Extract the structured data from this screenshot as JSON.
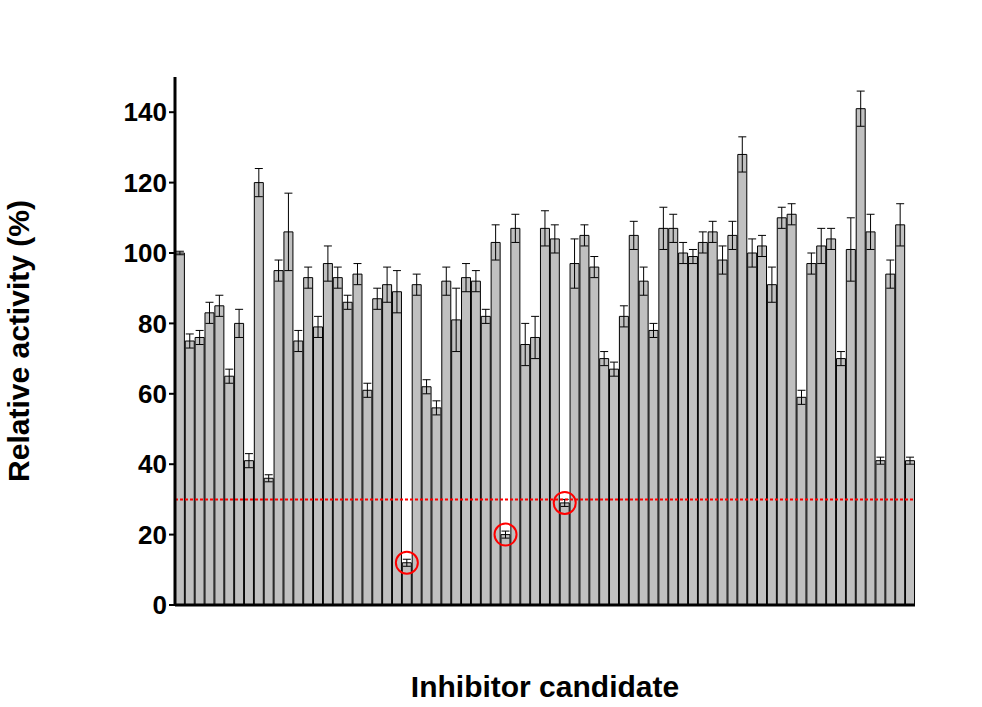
{
  "chart_data": {
    "type": "bar",
    "x_label": "Inhibitor candidate",
    "y_label": "Relative activity (%)",
    "categories": [
      null,
      null,
      null,
      null,
      null,
      null,
      null,
      null,
      null,
      null,
      null,
      null,
      null,
      null,
      null,
      null,
      null,
      null,
      null,
      null,
      null,
      null,
      null,
      null,
      null,
      null,
      null,
      null,
      null,
      null,
      null,
      null,
      null,
      null,
      null,
      null,
      null,
      null,
      null,
      null,
      null,
      null,
      null,
      null,
      null,
      null,
      null,
      null,
      null,
      null,
      null,
      null,
      null,
      null,
      null,
      null,
      null,
      null,
      null,
      null,
      null,
      null,
      null,
      null,
      null,
      null,
      null,
      null,
      null,
      null,
      null,
      null,
      null,
      null,
      null
    ],
    "values": [
      100,
      75,
      76,
      83,
      85,
      65,
      80,
      41,
      120,
      36,
      95,
      106,
      75,
      93,
      79,
      97,
      93,
      86,
      94,
      61,
      87,
      91,
      89,
      12,
      91,
      62,
      56,
      92,
      81,
      93,
      92,
      82,
      103,
      20,
      107,
      74,
      76,
      107,
      104,
      29,
      97,
      105,
      96,
      70,
      67,
      82,
      105,
      92,
      78,
      107,
      107,
      100,
      99,
      103,
      106,
      98,
      105,
      128,
      100,
      102,
      91,
      110,
      111,
      59,
      97,
      102,
      104,
      70,
      101,
      141,
      106,
      41,
      94,
      108,
      41
    ],
    "error": [
      0.5,
      2,
      2,
      3,
      3,
      2,
      4,
      2,
      4,
      1,
      3,
      11,
      3,
      3,
      3,
      5,
      3,
      2,
      3,
      2,
      3,
      5,
      6,
      1,
      3,
      2,
      2,
      4,
      9,
      4,
      3,
      2,
      5,
      1,
      4,
      6,
      6,
      5,
      4,
      1,
      7,
      3,
      3,
      2,
      2,
      3,
      4,
      4,
      2,
      6,
      4,
      3,
      2,
      3,
      3,
      4,
      4,
      5,
      4,
      3,
      5,
      3,
      3,
      2,
      3,
      5,
      3,
      2,
      9,
      5,
      5,
      1,
      4,
      6,
      1
    ],
    "threshold": 30,
    "color": "#c0c0c0",
    "ylim": [
      0,
      150
    ],
    "yticks": [
      0,
      20,
      40,
      60,
      80,
      100,
      120,
      140
    ],
    "grid": false,
    "tick_labels": "y"
  }
}
